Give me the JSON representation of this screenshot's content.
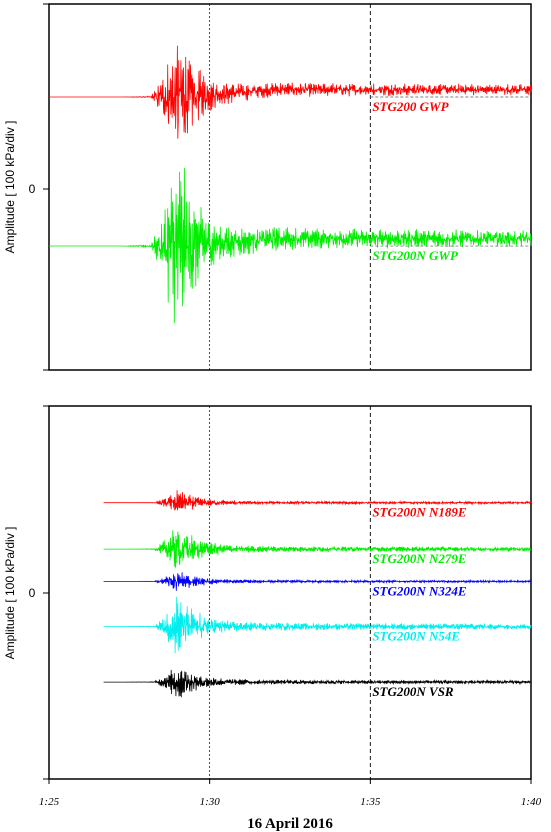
{
  "chart_data": [
    {
      "type": "line",
      "panel": "top",
      "ylabel": "Amplitude [ 100 kPa/div ]",
      "ytick_label": "0",
      "xlim": [
        "1:25",
        "1:40"
      ],
      "vlines": [
        {
          "time": "1:30",
          "style": "dotted"
        },
        {
          "time": "1:35",
          "style": "dashed"
        }
      ],
      "series": [
        {
          "name": "STG200 GWP",
          "color": "#ff0000",
          "offset_div": 1.0,
          "onset": "1:28.2",
          "peak": "1:29.0",
          "peak_amp_div": 0.55,
          "post_level_div": 0.08
        },
        {
          "name": "STG200N GWP",
          "color": "#00ee00",
          "offset_div": -0.62,
          "onset": "1:28.2",
          "peak": "1:29.0",
          "peak_amp_div": 0.85,
          "post_level_div": 0.08
        }
      ]
    },
    {
      "type": "line",
      "panel": "bottom",
      "ylabel": "Amplitude [ 100 kPa/div ]",
      "ytick_label": "0",
      "xlim": [
        "1:25",
        "1:40"
      ],
      "xticks": [
        "1:25",
        "1:30",
        "1:35",
        "1:40"
      ],
      "xlabel": "16 April 2016",
      "vlines": [
        {
          "time": "1:30",
          "style": "dotted"
        },
        {
          "time": "1:35",
          "style": "dashed"
        }
      ],
      "series": [
        {
          "name": "STG200N N189E",
          "color": "#ff0000",
          "offset_div": 1.48,
          "onset": "1:28.3",
          "peak": "1:29.0",
          "peak_amp_div": 0.17,
          "post_level_div": 0.0
        },
        {
          "name": "STG200N N279E",
          "color": "#00ee00",
          "offset_div": 0.72,
          "onset": "1:28.3",
          "peak": "1:29.0",
          "peak_amp_div": 0.33,
          "post_level_div": 0.0
        },
        {
          "name": "STG200N N324E",
          "color": "#0000ff",
          "offset_div": 0.19,
          "onset": "1:28.3",
          "peak": "1:29.0",
          "peak_amp_div": 0.15,
          "post_level_div": 0.0
        },
        {
          "name": "STG200N N54E",
          "color": "#00eeee",
          "offset_div": -0.55,
          "onset": "1:28.3",
          "peak": "1:29.0",
          "peak_amp_div": 0.44,
          "post_level_div": 0.0
        },
        {
          "name": "STG200N VSR",
          "color": "#000000",
          "offset_div": -1.46,
          "onset": "1:28.3",
          "peak": "1:29.0",
          "peak_amp_div": 0.25,
          "post_level_div": 0.0
        }
      ]
    }
  ]
}
